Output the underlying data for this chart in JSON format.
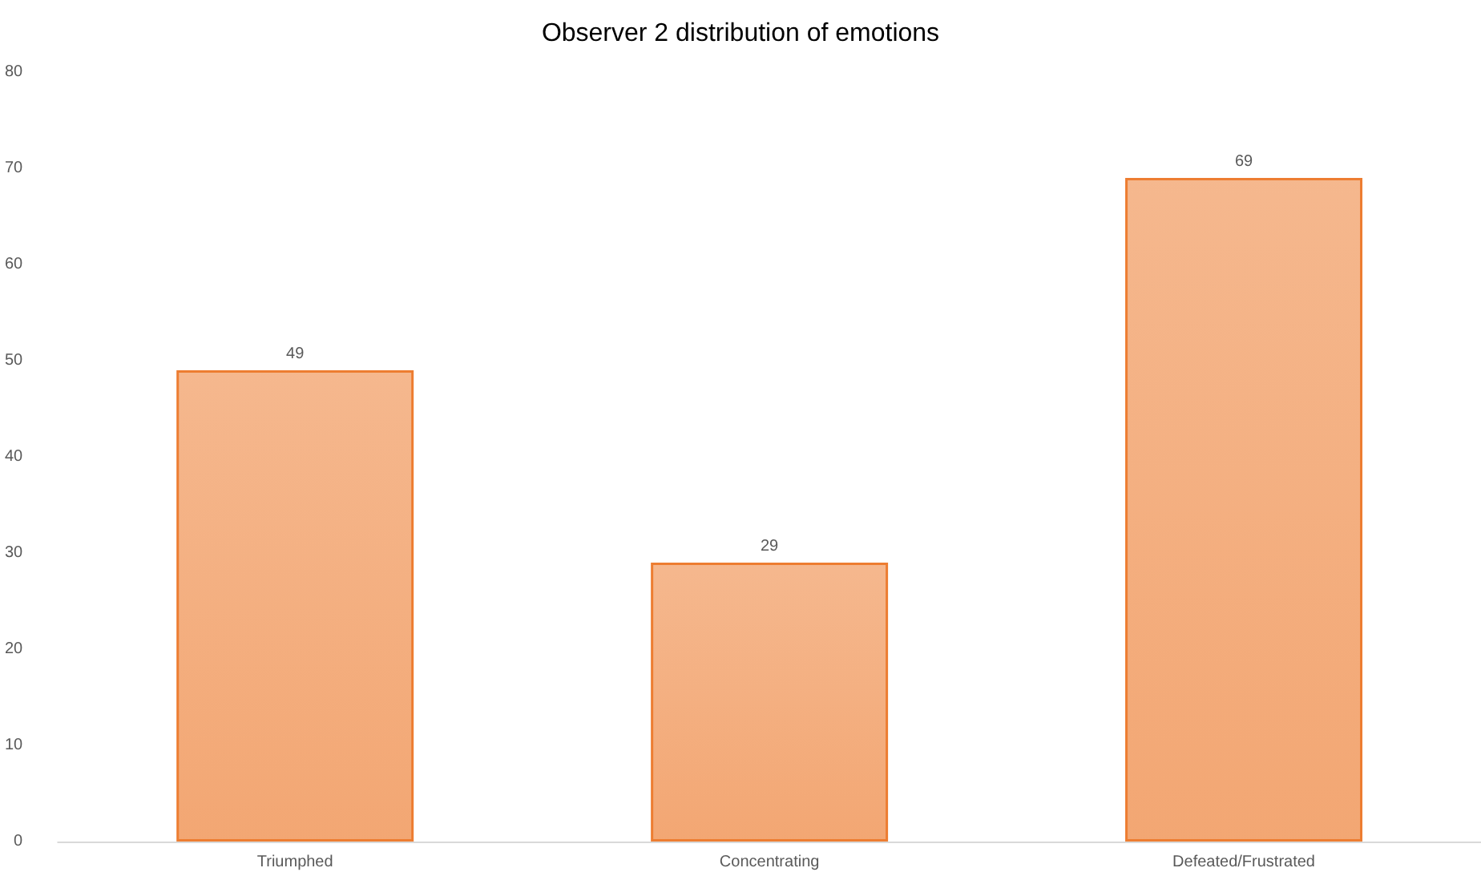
{
  "chart_data": {
    "type": "bar",
    "title": "Observer 2 distribution of emotions",
    "categories": [
      "Triumphed",
      "Concentrating",
      "Defeated/Frustrated"
    ],
    "values": [
      49,
      29,
      69
    ],
    "color": "#ed7d31",
    "ylim": [
      0,
      80
    ],
    "yticks": [
      0,
      10,
      20,
      30,
      40,
      50,
      60,
      70,
      80
    ],
    "data_labels": true,
    "grid": false
  }
}
